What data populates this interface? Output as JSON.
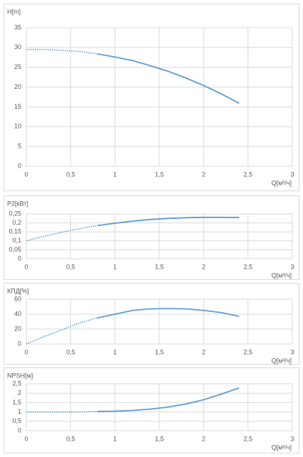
{
  "chart_data": [
    {
      "type": "line",
      "ylabel": "H[m]",
      "xlabel": "Q[м³/ч]",
      "grid": true,
      "xlim": [
        0,
        3
      ],
      "xticks": [
        0,
        {
          "value": 0.5,
          "label": "0,5"
        },
        1,
        {
          "value": 1.5,
          "label": "1,5"
        },
        2,
        {
          "value": 2.5,
          "label": "2,5"
        },
        3
      ],
      "ylim": [
        0,
        35
      ],
      "yticks": [
        0,
        5,
        10,
        15,
        20,
        25,
        30,
        35
      ],
      "series": [
        {
          "style": "dotted",
          "color": "#5b9bd5",
          "x": [
            0,
            0.2,
            0.4,
            0.6,
            0.8
          ],
          "values": [
            29.5,
            29.5,
            29.3,
            29.0,
            28.4
          ]
        },
        {
          "style": "solid",
          "color": "#5b9bd5",
          "x": [
            0.8,
            1.0,
            1.2,
            1.4,
            1.6,
            1.8,
            2.0,
            2.2,
            2.4
          ],
          "values": [
            28.4,
            27.6,
            26.7,
            25.4,
            24.0,
            22.3,
            20.4,
            18.3,
            15.9
          ]
        }
      ]
    },
    {
      "type": "line",
      "ylabel": "P2[кВт]",
      "xlabel": "Q[м³/ч]",
      "grid": true,
      "xlim": [
        0,
        3
      ],
      "xticks": [
        0,
        {
          "value": 0.5,
          "label": "0,5"
        },
        1,
        {
          "value": 1.5,
          "label": "1,5"
        },
        2,
        {
          "value": 2.5,
          "label": "2,5"
        },
        3
      ],
      "ylim": [
        0,
        0.25
      ],
      "yticks": [
        0,
        {
          "value": 0.05,
          "label": "0,05"
        },
        {
          "value": 0.1,
          "label": "0,1"
        },
        {
          "value": 0.15,
          "label": "0,15"
        },
        {
          "value": 0.2,
          "label": "0,2"
        },
        {
          "value": 0.25,
          "label": "0,25"
        }
      ],
      "series": [
        {
          "style": "dotted",
          "color": "#5b9bd5",
          "x": [
            0,
            0.2,
            0.4,
            0.6,
            0.8
          ],
          "values": [
            0.1,
            0.125,
            0.148,
            0.168,
            0.185
          ]
        },
        {
          "style": "solid",
          "color": "#5b9bd5",
          "x": [
            0.8,
            1.0,
            1.2,
            1.4,
            1.6,
            1.8,
            2.0,
            2.2,
            2.4
          ],
          "values": [
            0.185,
            0.198,
            0.21,
            0.219,
            0.225,
            0.229,
            0.231,
            0.231,
            0.23
          ]
        }
      ]
    },
    {
      "type": "line",
      "ylabel": "КПД[%]",
      "xlabel": "Q[м³/ч]",
      "grid": true,
      "xlim": [
        0,
        3
      ],
      "xticks": [
        0,
        {
          "value": 0.5,
          "label": "0,5"
        },
        1,
        {
          "value": 1.5,
          "label": "1,5"
        },
        2,
        {
          "value": 2.5,
          "label": "2,5"
        },
        3
      ],
      "ylim": [
        0,
        60
      ],
      "yticks": [
        0,
        20,
        40,
        60
      ],
      "series": [
        {
          "style": "dotted",
          "color": "#5b9bd5",
          "x": [
            0,
            0.2,
            0.4,
            0.6,
            0.8
          ],
          "values": [
            0,
            10,
            19,
            28,
            35
          ]
        },
        {
          "style": "solid",
          "color": "#5b9bd5",
          "x": [
            0.8,
            1.0,
            1.2,
            1.4,
            1.6,
            1.8,
            2.0,
            2.2,
            2.4
          ],
          "values": [
            35,
            40,
            45,
            47,
            47.5,
            47,
            45,
            42,
            37
          ]
        }
      ]
    },
    {
      "type": "line",
      "ylabel": "NPSH[м]",
      "xlabel": "Q[м³/ч]",
      "grid": true,
      "xlim": [
        0,
        3
      ],
      "xticks": [
        0,
        {
          "value": 0.5,
          "label": "0,5"
        },
        1,
        {
          "value": 1.5,
          "label": "1,5"
        },
        2,
        {
          "value": 2.5,
          "label": "2,5"
        },
        3
      ],
      "ylim": [
        0,
        2.5
      ],
      "yticks": [
        0,
        {
          "value": 0.5,
          "label": "0,5"
        },
        1,
        {
          "value": 1.5,
          "label": "1,5"
        },
        2,
        {
          "value": 2.5,
          "label": "2,5"
        }
      ],
      "series": [
        {
          "style": "dotted",
          "color": "#5b9bd5",
          "x": [
            0,
            0.2,
            0.4,
            0.6,
            0.8
          ],
          "values": [
            1.0,
            1.0,
            1.0,
            1.0,
            1.02
          ]
        },
        {
          "style": "solid",
          "color": "#5b9bd5",
          "x": [
            0.8,
            1.0,
            1.2,
            1.4,
            1.6,
            1.8,
            2.0,
            2.2,
            2.4
          ],
          "values": [
            1.02,
            1.04,
            1.08,
            1.15,
            1.26,
            1.42,
            1.65,
            1.95,
            2.28
          ]
        }
      ]
    }
  ]
}
